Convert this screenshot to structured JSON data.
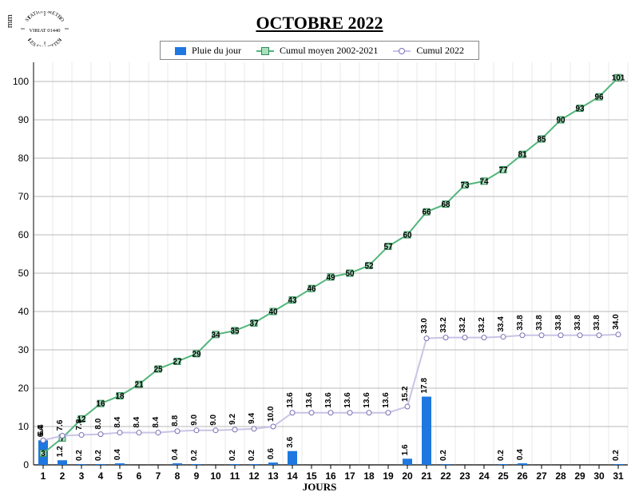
{
  "title": "OCTOBRE 2022",
  "ylabel": "mm",
  "xlabel": "JOURS",
  "badge": {
    "top": "STATION METEO",
    "mid": "VIRIAT 01440",
    "bot": "LES FAUVETTES"
  },
  "legend": {
    "pluie": "Pluie du jour",
    "moyen": "Cumul moyen 2002-2021",
    "cumul": "Cumul 2022"
  },
  "chart": {
    "type": "combo-bar-line",
    "days": [
      1,
      2,
      3,
      4,
      5,
      6,
      7,
      8,
      9,
      10,
      11,
      12,
      13,
      14,
      15,
      16,
      17,
      18,
      19,
      20,
      21,
      22,
      23,
      24,
      25,
      26,
      27,
      28,
      29,
      30,
      31
    ],
    "ylim": [
      0,
      105
    ],
    "yticks": [
      0,
      10,
      20,
      30,
      40,
      50,
      60,
      70,
      80,
      90,
      100
    ],
    "grid_color": "#b9b9b9",
    "axis_color": "#000000",
    "background": "#ffffff",
    "bar": {
      "color": "#1f77e0",
      "width_ratio": 0.5,
      "values": [
        6.4,
        1.2,
        0.2,
        0.2,
        0.4,
        0,
        0,
        0.4,
        0.2,
        0,
        0.2,
        0.2,
        0.6,
        3.6,
        0,
        0,
        0,
        0,
        0,
        1.6,
        17.8,
        0.2,
        0,
        0,
        0.2,
        0.4,
        0,
        0,
        0,
        0,
        0.2
      ],
      "labels": [
        "6.4",
        "1.2",
        "0.2",
        "0.2",
        "0.4",
        "",
        "",
        "0.4",
        "0.2",
        "",
        "0.2",
        "0.2",
        "0.6",
        "3.6",
        "",
        "",
        "",
        "",
        "",
        "1.6",
        "17.8",
        "0.2",
        "",
        "",
        "0.2",
        "0.4",
        "",
        "",
        "",
        "",
        "0.2"
      ]
    },
    "moyen": {
      "line_color": "#51b67a",
      "marker_fill": "#a9e0bd",
      "marker_stroke": "#2e8b57",
      "marker_size": 8,
      "values": [
        3,
        7,
        12,
        16,
        18,
        21,
        25,
        27,
        29,
        34,
        35,
        37,
        40,
        43,
        46,
        49,
        50,
        52,
        57,
        60,
        66,
        68,
        73,
        74,
        77,
        81,
        85,
        90,
        93,
        96,
        101
      ]
    },
    "cumul": {
      "line_color": "#c9c3e6",
      "marker_fill": "#ffffff",
      "marker_stroke": "#7a6fb5",
      "marker_size": 6,
      "values": [
        6.4,
        7.6,
        7.8,
        8.0,
        8.4,
        8.4,
        8.4,
        8.8,
        9.0,
        9.0,
        9.2,
        9.4,
        10.0,
        13.6,
        13.6,
        13.6,
        13.6,
        13.6,
        13.6,
        15.2,
        33.0,
        33.2,
        33.2,
        33.2,
        33.4,
        33.8,
        33.8,
        33.8,
        33.8,
        33.8,
        34.0
      ],
      "labels": [
        "6.4",
        "7.6",
        "7.8",
        "8.0",
        "8.4",
        "8.4",
        "8.4",
        "8.8",
        "9.0",
        "9.0",
        "9.2",
        "9.4",
        "10.0",
        "13.6",
        "13.6",
        "13.6",
        "13.6",
        "13.6",
        "13.6",
        "15.2",
        "33.0",
        "33.2",
        "33.2",
        "33.2",
        "33.4",
        "33.8",
        "33.8",
        "33.8",
        "33.8",
        "33.8",
        "34.0"
      ]
    },
    "tick_fontsize": 12,
    "label_fontsize": 10
  }
}
